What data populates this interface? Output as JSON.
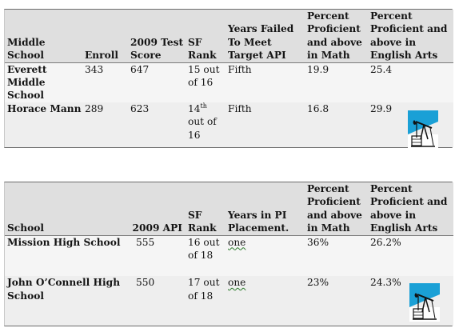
{
  "table1": {
    "headers": [
      "Middle School",
      "Enroll",
      "2009 Test Score",
      "SF Rank",
      "Years Failed To Meet Target API",
      "Percent Proficient and above in Math",
      "Percent Proficient and above in English Arts"
    ],
    "rows": [
      {
        "school": "Everett Middle School",
        "enroll": "343",
        "score": "647",
        "rank": "15 out of 16",
        "years": "Fifth",
        "math": "19.9",
        "english": "25.4"
      },
      {
        "school": "Horace Mann",
        "enroll": "289",
        "score": "623",
        "rank_num": "14",
        "rank_sup": "th",
        "rank_rest": " out of 16",
        "years": "Fifth",
        "math": "16.8",
        "english": "29.9"
      }
    ]
  },
  "table2": {
    "headers": [
      "School",
      "2009 API",
      "SF Rank",
      "Years in PI Placement.",
      "Percent Proficient and above in Math",
      "Percent Proficient and above in English Arts"
    ],
    "rows": [
      {
        "school": "Mission High School",
        "api": "555",
        "rank": "16 out of 18",
        "years": "one",
        "math": "36%",
        "english": "26.2%"
      },
      {
        "school": "John O’Connell High School",
        "api": "550",
        "rank": "17 out of 18",
        "years": "one",
        "math": "23%",
        "english": "24.3%"
      }
    ]
  },
  "logo_icon": "oil-pump-jack-icon"
}
